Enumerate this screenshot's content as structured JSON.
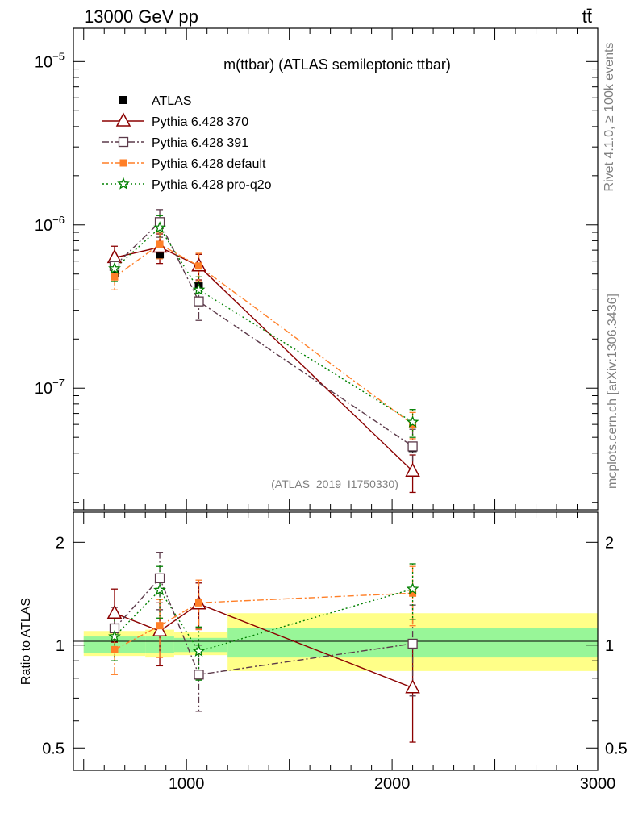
{
  "header": {
    "energy_label": "13000 GeV pp",
    "process_label": "tt̄"
  },
  "side_labels": {
    "rivet": "Rivet 4.1.0, ≥ 100k events",
    "mcplots": "mcplots.cern.ch [arXiv:1306.3436]"
  },
  "chart_data": [
    {
      "type": "line",
      "panel": "main",
      "title": "m(ttbar) (ATLAS semileptonic ttbar)",
      "analysis_tag": "(ATLAS_2019_I1750330)",
      "yscale": "log",
      "xlim": [
        450,
        3000
      ],
      "ylim": [
        1.8e-08,
        1.6e-05
      ],
      "ytick_labels": [
        {
          "value": 1e-05,
          "base": "10",
          "exp": "−5"
        },
        {
          "value": 1e-06,
          "base": "10",
          "exp": "−6"
        },
        {
          "value": 1e-07,
          "base": "10",
          "exp": "−7"
        }
      ],
      "data": {
        "name": "ATLAS",
        "x": [
          650,
          870,
          1060,
          2100
        ],
        "y": [
          5.1e-07,
          6.6e-07,
          4.2e-07,
          4.3e-08
        ],
        "xerr_low": [
          100,
          120,
          70,
          900
        ],
        "xerr_high": [
          100,
          120,
          70,
          900
        ]
      },
      "series": [
        {
          "name": "Pythia 6.428 370",
          "color": "#8b0000",
          "marker": "triangle",
          "dash": "solid",
          "x": [
            650,
            870,
            1060,
            2100
          ],
          "y": [
            6.3e-07,
            7.3e-07,
            5.6e-07,
            3.1e-08
          ],
          "yerr_low": [
            1.1e-07,
            1.5e-07,
            1e-07,
            8e-09
          ],
          "yerr_high": [
            1.1e-07,
            1.5e-07,
            1e-07,
            8e-09
          ]
        },
        {
          "name": "Pythia 6.428 391",
          "color": "#5c3a4a",
          "marker": "open-square",
          "dash": "dashdot",
          "x": [
            650,
            870,
            1060,
            2100
          ],
          "y": [
            5.6e-07,
            1.04e-06,
            3.4e-07,
            4.4e-08
          ],
          "yerr_low": [
            9e-08,
            2e-07,
            8e-08,
            1.2e-08
          ],
          "yerr_high": [
            9e-08,
            2e-07,
            8e-08,
            1.2e-08
          ]
        },
        {
          "name": "Pythia 6.428 default",
          "color": "#ff7f27",
          "marker": "filled-square",
          "dash": "dashdot",
          "x": [
            650,
            870,
            1060,
            2100
          ],
          "y": [
            4.8e-07,
            7.6e-07,
            5.6e-07,
            6e-08
          ],
          "yerr_low": [
            8e-08,
            1.4e-07,
            1.1e-07,
            1.1e-08
          ],
          "yerr_high": [
            8e-08,
            1.4e-07,
            1.1e-07,
            1.1e-08
          ]
        },
        {
          "name": "Pythia 6.428 pro-q2o",
          "color": "#008000",
          "marker": "star",
          "dash": "dotted",
          "x": [
            650,
            870,
            1060,
            2100
          ],
          "y": [
            5.4e-07,
            9.6e-07,
            4e-07,
            6.2e-08
          ],
          "yerr_low": [
            9e-08,
            1.8e-07,
            8e-08,
            1.2e-08
          ],
          "yerr_high": [
            9e-08,
            1.8e-07,
            8e-08,
            1.2e-08
          ]
        }
      ]
    },
    {
      "type": "line",
      "panel": "ratio",
      "ylabel": "Ratio to ATLAS",
      "yscale": "log",
      "xlim": [
        450,
        3000
      ],
      "ylim": [
        0.43,
        2.45
      ],
      "ytick_labels": [
        {
          "value": 2,
          "label": "2"
        },
        {
          "value": 1,
          "label": "1"
        },
        {
          "value": 0.5,
          "label": "0.5"
        }
      ],
      "xtick_labels": [
        {
          "value": 1000,
          "label": "1000"
        },
        {
          "value": 2000,
          "label": "2000"
        },
        {
          "value": 3000,
          "label": "3000"
        }
      ],
      "bands": [
        {
          "x0": 500,
          "x1": 800,
          "stat_lo": 0.95,
          "stat_hi": 1.06,
          "tot_lo": 0.93,
          "tot_hi": 1.1
        },
        {
          "x0": 800,
          "x1": 940,
          "stat_lo": 0.95,
          "stat_hi": 1.06,
          "tot_lo": 0.92,
          "tot_hi": 1.11
        },
        {
          "x0": 940,
          "x1": 1200,
          "stat_lo": 0.955,
          "stat_hi": 1.05,
          "tot_lo": 0.935,
          "tot_hi": 1.09
        },
        {
          "x0": 1200,
          "x1": 3000,
          "stat_lo": 0.92,
          "stat_hi": 1.12,
          "tot_lo": 0.84,
          "tot_hi": 1.24
        }
      ],
      "series": [
        {
          "name": "Pythia 6.428 370",
          "x": [
            650,
            870,
            1060,
            2100
          ],
          "y": [
            1.24,
            1.1,
            1.32,
            0.75
          ],
          "yerr_low": [
            0.22,
            0.23,
            0.2,
            0.23
          ],
          "yerr_high": [
            0.22,
            0.23,
            0.2,
            0.23
          ]
        },
        {
          "name": "Pythia 6.428 391",
          "x": [
            650,
            870,
            1060,
            2100
          ],
          "y": [
            1.12,
            1.57,
            0.82,
            1.01
          ],
          "yerr_low": [
            0.17,
            0.3,
            0.18,
            0.3
          ],
          "yerr_high": [
            0.17,
            0.3,
            0.18,
            0.3
          ]
        },
        {
          "name": "Pythia 6.428 default",
          "x": [
            650,
            870,
            1060,
            2100
          ],
          "y": [
            0.97,
            1.14,
            1.33,
            1.42
          ],
          "yerr_low": [
            0.15,
            0.22,
            0.22,
            0.28
          ],
          "yerr_high": [
            0.15,
            0.22,
            0.22,
            0.28
          ]
        },
        {
          "name": "Pythia 6.428 pro-q2o",
          "x": [
            650,
            870,
            1060,
            2100
          ],
          "y": [
            1.06,
            1.45,
            0.96,
            1.46
          ],
          "yerr_low": [
            0.16,
            0.25,
            0.17,
            0.27
          ],
          "yerr_high": [
            0.16,
            0.25,
            0.17,
            0.27
          ]
        }
      ]
    }
  ]
}
